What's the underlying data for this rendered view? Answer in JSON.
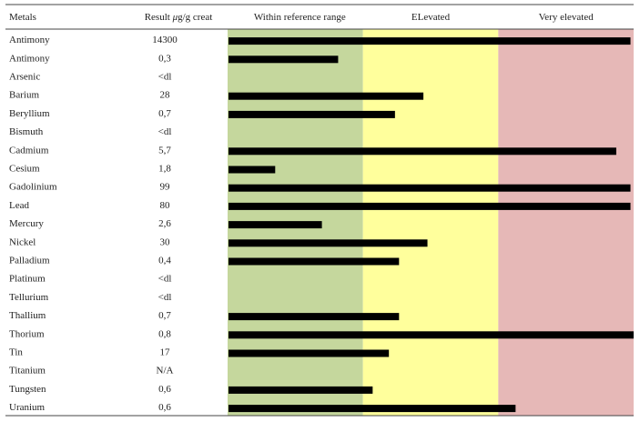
{
  "chart_data": {
    "type": "bar",
    "orientation": "horizontal",
    "headers": {
      "metal": "Metals",
      "result_prefix": "Result ",
      "result_mu": "μ",
      "result_suffix": "g/g creat",
      "zone_normal": "Within reference range",
      "zone_elevated": "ELevated",
      "zone_very": "Very elevated"
    },
    "zone_colors": {
      "normal": "#c5d79d",
      "elevated": "#ffff9c",
      "very": "#e6b8b7"
    },
    "bar_color": "#000000",
    "scale_note": "bar lengths as fraction of the full three-zone band (0 to 1)",
    "rows": [
      {
        "metal": "Antimony",
        "result": "14300",
        "bar": 0.99
      },
      {
        "metal": "Antimony",
        "result": "0,3",
        "bar": 0.27
      },
      {
        "metal": "Arsenic",
        "result": "<dl",
        "bar": null
      },
      {
        "metal": "Barium",
        "result": "28",
        "bar": 0.48
      },
      {
        "metal": "Beryllium",
        "result": "0,7",
        "bar": 0.41
      },
      {
        "metal": "Bismuth",
        "result": "<dl",
        "bar": null
      },
      {
        "metal": "Cadmium",
        "result": "5,7",
        "bar": 0.955
      },
      {
        "metal": "Cesium",
        "result": "1,8",
        "bar": 0.115
      },
      {
        "metal": "Gadolinium",
        "result": "99",
        "bar": 0.99
      },
      {
        "metal": "Lead",
        "result": "80",
        "bar": 0.99
      },
      {
        "metal": "Mercury",
        "result": "2,6",
        "bar": 0.23
      },
      {
        "metal": "Nickel",
        "result": "30",
        "bar": 0.49
      },
      {
        "metal": "Palladium",
        "result": "0,4",
        "bar": 0.42
      },
      {
        "metal": "Platinum",
        "result": "<dl",
        "bar": null
      },
      {
        "metal": "Tellurium",
        "result": "<dl",
        "bar": null
      },
      {
        "metal": "Thallium",
        "result": "0,7",
        "bar": 0.42
      },
      {
        "metal": "Thorium",
        "result": "0,8",
        "bar": 1.0
      },
      {
        "metal": "Tin",
        "result": "17",
        "bar": 0.395
      },
      {
        "metal": "Titanium",
        "result": "N/A",
        "bar": null
      },
      {
        "metal": "Tungsten",
        "result": "0,6",
        "bar": 0.355
      },
      {
        "metal": "Uranium",
        "result": "0,6",
        "bar": 0.707
      }
    ]
  }
}
